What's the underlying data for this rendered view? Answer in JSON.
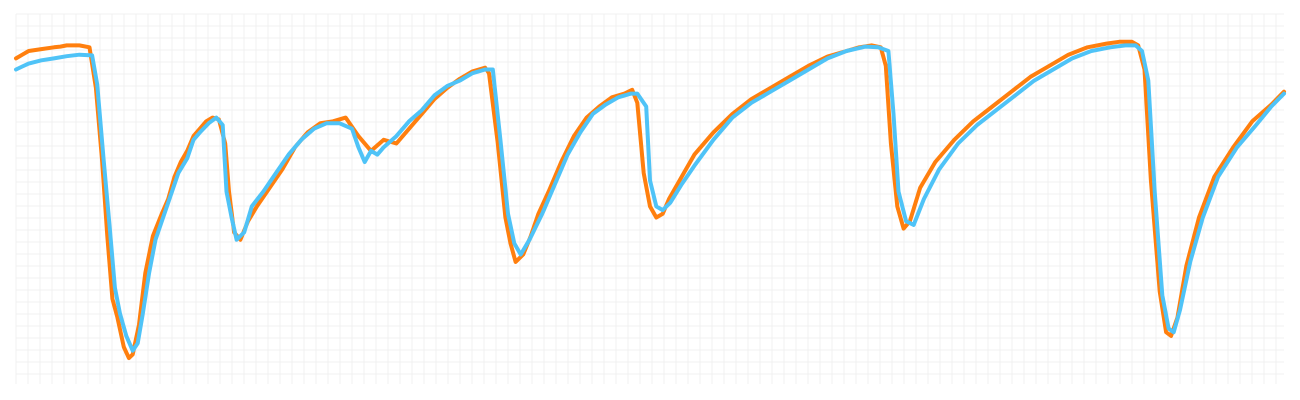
{
  "chart_data": {
    "type": "line",
    "grid": true,
    "legend": "none",
    "xlim": [
      0,
      100
    ],
    "ylim": [
      0,
      100
    ],
    "series": [
      {
        "color": "#ff7f0e",
        "points": [
          [
            0.0,
            88.0
          ],
          [
            0.5,
            89.0
          ],
          [
            1.0,
            90.0
          ],
          [
            2.0,
            90.5
          ],
          [
            3.0,
            91.0
          ],
          [
            3.5,
            91.2
          ],
          [
            4.0,
            91.5
          ],
          [
            5.0,
            91.5
          ],
          [
            5.8,
            91.0
          ],
          [
            6.3,
            80.0
          ],
          [
            6.8,
            60.0
          ],
          [
            7.2,
            40.0
          ],
          [
            7.6,
            23.0
          ],
          [
            8.0,
            18.0
          ],
          [
            8.5,
            10.0
          ],
          [
            8.9,
            7.0
          ],
          [
            9.2,
            8.0
          ],
          [
            9.7,
            16.0
          ],
          [
            10.2,
            30.0
          ],
          [
            10.8,
            40.0
          ],
          [
            11.5,
            46.0
          ],
          [
            12.0,
            50.0
          ],
          [
            12.5,
            56.0
          ],
          [
            13.0,
            60.0
          ],
          [
            13.5,
            63.0
          ],
          [
            14.0,
            67.0
          ],
          [
            14.5,
            69.0
          ],
          [
            15.0,
            71.0
          ],
          [
            15.5,
            72.0
          ],
          [
            16.0,
            71.5
          ],
          [
            16.5,
            65.0
          ],
          [
            16.8,
            52.0
          ],
          [
            17.2,
            41.0
          ],
          [
            17.7,
            39.0
          ],
          [
            18.3,
            44.0
          ],
          [
            19.0,
            48.0
          ],
          [
            20.0,
            53.0
          ],
          [
            21.0,
            58.0
          ],
          [
            22.0,
            64.0
          ],
          [
            23.0,
            68.0
          ],
          [
            24.0,
            70.5
          ],
          [
            25.0,
            71.0
          ],
          [
            26.0,
            72.0
          ],
          [
            27.0,
            67.0
          ],
          [
            28.0,
            63.0
          ],
          [
            29.0,
            66.0
          ],
          [
            30.0,
            65.0
          ],
          [
            31.0,
            69.0
          ],
          [
            32.0,
            73.0
          ],
          [
            33.0,
            77.0
          ],
          [
            34.0,
            80.0
          ],
          [
            35.0,
            82.5
          ],
          [
            36.0,
            84.5
          ],
          [
            37.0,
            85.5
          ],
          [
            37.3,
            84.0
          ],
          [
            38.0,
            65.0
          ],
          [
            38.6,
            45.0
          ],
          [
            39.0,
            38.0
          ],
          [
            39.4,
            33.0
          ],
          [
            40.0,
            35.0
          ],
          [
            40.6,
            40.0
          ],
          [
            41.2,
            46.0
          ],
          [
            42.0,
            52.0
          ],
          [
            43.0,
            60.0
          ],
          [
            44.0,
            67.0
          ],
          [
            45.0,
            72.0
          ],
          [
            46.0,
            75.0
          ],
          [
            47.0,
            77.5
          ],
          [
            48.0,
            78.5
          ],
          [
            48.6,
            79.5
          ],
          [
            49.0,
            76.0
          ],
          [
            49.5,
            57.0
          ],
          [
            50.0,
            48.0
          ],
          [
            50.5,
            45.0
          ],
          [
            51.0,
            46.0
          ],
          [
            51.5,
            50.0
          ],
          [
            52.5,
            56.0
          ],
          [
            53.5,
            62.0
          ],
          [
            55.0,
            68.0
          ],
          [
            56.5,
            73.0
          ],
          [
            58.0,
            77.0
          ],
          [
            59.5,
            80.0
          ],
          [
            61.0,
            83.0
          ],
          [
            62.5,
            86.0
          ],
          [
            64.0,
            88.5
          ],
          [
            65.5,
            90.0
          ],
          [
            66.5,
            91.0
          ],
          [
            67.5,
            91.5
          ],
          [
            68.2,
            91.0
          ],
          [
            68.6,
            86.0
          ],
          [
            69.0,
            65.0
          ],
          [
            69.5,
            48.0
          ],
          [
            70.0,
            42.0
          ],
          [
            70.5,
            44.0
          ],
          [
            71.3,
            53.0
          ],
          [
            72.5,
            60.0
          ],
          [
            74.0,
            66.0
          ],
          [
            75.5,
            71.0
          ],
          [
            77.0,
            75.0
          ],
          [
            78.5,
            79.0
          ],
          [
            80.0,
            83.0
          ],
          [
            81.5,
            86.0
          ],
          [
            83.0,
            89.0
          ],
          [
            84.5,
            91.0
          ],
          [
            86.0,
            92.0
          ],
          [
            87.0,
            92.5
          ],
          [
            88.0,
            92.5
          ],
          [
            88.5,
            91.5
          ],
          [
            89.0,
            85.0
          ],
          [
            89.5,
            55.0
          ],
          [
            90.2,
            25.0
          ],
          [
            90.7,
            14.0
          ],
          [
            91.1,
            13.0
          ],
          [
            91.6,
            18.0
          ],
          [
            92.3,
            32.0
          ],
          [
            93.3,
            45.0
          ],
          [
            94.5,
            56.0
          ],
          [
            96.0,
            64.0
          ],
          [
            97.5,
            71.0
          ],
          [
            99.0,
            75.5
          ],
          [
            100.0,
            79.0
          ]
        ]
      },
      {
        "color": "#4fc3f7",
        "points": [
          [
            0.0,
            85.0
          ],
          [
            0.5,
            85.8
          ],
          [
            1.0,
            86.6
          ],
          [
            2.0,
            87.5
          ],
          [
            3.0,
            88.0
          ],
          [
            4.0,
            88.6
          ],
          [
            5.0,
            89.0
          ],
          [
            6.0,
            88.8
          ],
          [
            6.4,
            81.0
          ],
          [
            6.9,
            61.0
          ],
          [
            7.4,
            42.0
          ],
          [
            7.8,
            26.0
          ],
          [
            8.2,
            19.0
          ],
          [
            8.7,
            13.0
          ],
          [
            9.2,
            9.0
          ],
          [
            9.6,
            11.0
          ],
          [
            10.0,
            19.0
          ],
          [
            10.5,
            30.0
          ],
          [
            11.0,
            39.0
          ],
          [
            11.6,
            45.0
          ],
          [
            12.2,
            51.0
          ],
          [
            12.8,
            57.0
          ],
          [
            13.5,
            61.0
          ],
          [
            14.0,
            66.0
          ],
          [
            14.5,
            68.0
          ],
          [
            15.2,
            70.5
          ],
          [
            15.8,
            72.0
          ],
          [
            16.3,
            70.0
          ],
          [
            16.6,
            52.0
          ],
          [
            17.0,
            45.0
          ],
          [
            17.4,
            39.0
          ],
          [
            18.0,
            41.0
          ],
          [
            18.6,
            48.0
          ],
          [
            19.5,
            52.0
          ],
          [
            20.5,
            57.0
          ],
          [
            21.5,
            62.0
          ],
          [
            22.5,
            66.0
          ],
          [
            23.5,
            69.0
          ],
          [
            24.5,
            70.5
          ],
          [
            25.5,
            70.5
          ],
          [
            26.5,
            69.0
          ],
          [
            27.0,
            64.0
          ],
          [
            27.5,
            60.0
          ],
          [
            28.0,
            63.0
          ],
          [
            28.5,
            62.0
          ],
          [
            29.0,
            64.0
          ],
          [
            30.0,
            67.0
          ],
          [
            31.0,
            71.0
          ],
          [
            32.0,
            74.0
          ],
          [
            33.0,
            78.0
          ],
          [
            34.0,
            80.5
          ],
          [
            35.0,
            82.0
          ],
          [
            36.0,
            84.0
          ],
          [
            37.0,
            85.0
          ],
          [
            37.6,
            85.0
          ],
          [
            38.2,
            66.0
          ],
          [
            38.8,
            46.0
          ],
          [
            39.3,
            38.0
          ],
          [
            39.8,
            35.0
          ],
          [
            40.5,
            39.0
          ],
          [
            41.5,
            46.0
          ],
          [
            42.5,
            54.0
          ],
          [
            43.5,
            62.0
          ],
          [
            44.5,
            68.0
          ],
          [
            45.5,
            73.0
          ],
          [
            46.5,
            75.5
          ],
          [
            47.5,
            77.5
          ],
          [
            48.5,
            78.5
          ],
          [
            49.0,
            78.5
          ],
          [
            49.7,
            75.0
          ],
          [
            50.0,
            55.0
          ],
          [
            50.5,
            48.0
          ],
          [
            51.0,
            47.0
          ],
          [
            51.6,
            49.0
          ],
          [
            52.5,
            54.0
          ],
          [
            53.5,
            59.0
          ],
          [
            55.0,
            66.0
          ],
          [
            56.5,
            72.0
          ],
          [
            58.0,
            76.0
          ],
          [
            59.5,
            79.0
          ],
          [
            61.0,
            82.0
          ],
          [
            62.5,
            85.0
          ],
          [
            64.0,
            88.0
          ],
          [
            65.5,
            90.0
          ],
          [
            67.0,
            91.2
          ],
          [
            68.0,
            91.0
          ],
          [
            68.8,
            90.0
          ],
          [
            69.2,
            73.0
          ],
          [
            69.6,
            52.0
          ],
          [
            70.2,
            44.0
          ],
          [
            70.8,
            43.0
          ],
          [
            71.6,
            50.0
          ],
          [
            72.8,
            58.0
          ],
          [
            74.3,
            65.0
          ],
          [
            75.8,
            70.0
          ],
          [
            77.3,
            74.0
          ],
          [
            78.8,
            78.0
          ],
          [
            80.3,
            82.0
          ],
          [
            81.8,
            85.0
          ],
          [
            83.3,
            88.0
          ],
          [
            84.8,
            90.0
          ],
          [
            86.3,
            91.0
          ],
          [
            87.5,
            91.5
          ],
          [
            88.3,
            91.5
          ],
          [
            88.8,
            90.0
          ],
          [
            89.3,
            82.0
          ],
          [
            89.8,
            52.0
          ],
          [
            90.4,
            24.0
          ],
          [
            90.9,
            15.0
          ],
          [
            91.3,
            14.0
          ],
          [
            91.8,
            20.0
          ],
          [
            92.6,
            33.0
          ],
          [
            93.6,
            45.0
          ],
          [
            94.8,
            56.0
          ],
          [
            96.3,
            64.0
          ],
          [
            97.8,
            70.0
          ],
          [
            99.0,
            75.0
          ],
          [
            100.0,
            78.5
          ]
        ]
      }
    ]
  }
}
